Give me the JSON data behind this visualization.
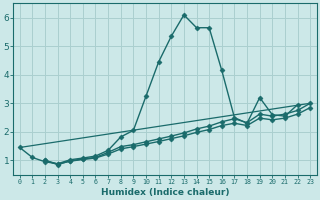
{
  "xlabel": "Humidex (Indice chaleur)",
  "ylabel": "",
  "background_color": "#cce8e8",
  "grid_color": "#aacfcf",
  "line_color": "#1a6b6b",
  "xlim": [
    -0.5,
    23.5
  ],
  "ylim": [
    0.5,
    6.5
  ],
  "x_ticks": [
    0,
    1,
    2,
    3,
    4,
    5,
    6,
    7,
    8,
    9,
    10,
    11,
    12,
    13,
    14,
    15,
    16,
    17,
    18,
    19,
    20,
    21,
    22,
    23
  ],
  "y_ticks": [
    1,
    2,
    3,
    4,
    5,
    6
  ],
  "lines": [
    {
      "x": [
        0,
        1,
        2,
        3,
        4,
        5,
        6,
        7,
        8,
        9,
        10,
        11,
        12,
        13,
        14,
        15,
        16,
        17,
        18,
        19,
        20,
        21,
        22
      ],
      "y": [
        1.45,
        1.1,
        0.95,
        0.88,
        1.02,
        1.08,
        1.15,
        1.35,
        1.82,
        2.05,
        3.25,
        4.45,
        5.35,
        6.1,
        5.65,
        5.65,
        4.15,
        2.5,
        2.3,
        3.2,
        2.6,
        2.55,
        2.95
      ],
      "marker": "D",
      "markersize": 2.5,
      "lw": 1.0
    },
    {
      "x": [
        2,
        3,
        4,
        5,
        6,
        7,
        8,
        9,
        10,
        11,
        12,
        13,
        14,
        15,
        16,
        17,
        18,
        19,
        20,
        21,
        22,
        23
      ],
      "y": [
        1.0,
        0.85,
        0.98,
        1.05,
        1.1,
        1.28,
        1.48,
        1.55,
        1.65,
        1.75,
        1.85,
        1.96,
        2.1,
        2.2,
        2.35,
        2.46,
        2.32,
        2.62,
        2.55,
        2.62,
        2.75,
        3.0
      ],
      "marker": "D",
      "markersize": 2.5,
      "lw": 1.0
    },
    {
      "x": [
        2,
        3,
        4,
        5,
        6,
        7,
        8,
        9,
        10,
        11,
        12,
        13,
        14,
        15,
        16,
        17,
        18,
        19,
        20,
        21,
        22,
        23
      ],
      "y": [
        1.0,
        0.87,
        0.97,
        1.03,
        1.08,
        1.22,
        1.4,
        1.48,
        1.57,
        1.66,
        1.76,
        1.86,
        1.98,
        2.08,
        2.22,
        2.3,
        2.22,
        2.48,
        2.42,
        2.48,
        2.62,
        2.85
      ],
      "marker": "D",
      "markersize": 2.5,
      "lw": 1.0
    },
    {
      "x": [
        0,
        23
      ],
      "y": [
        1.45,
        3.0
      ],
      "marker": null,
      "markersize": 0,
      "lw": 0.9
    }
  ]
}
